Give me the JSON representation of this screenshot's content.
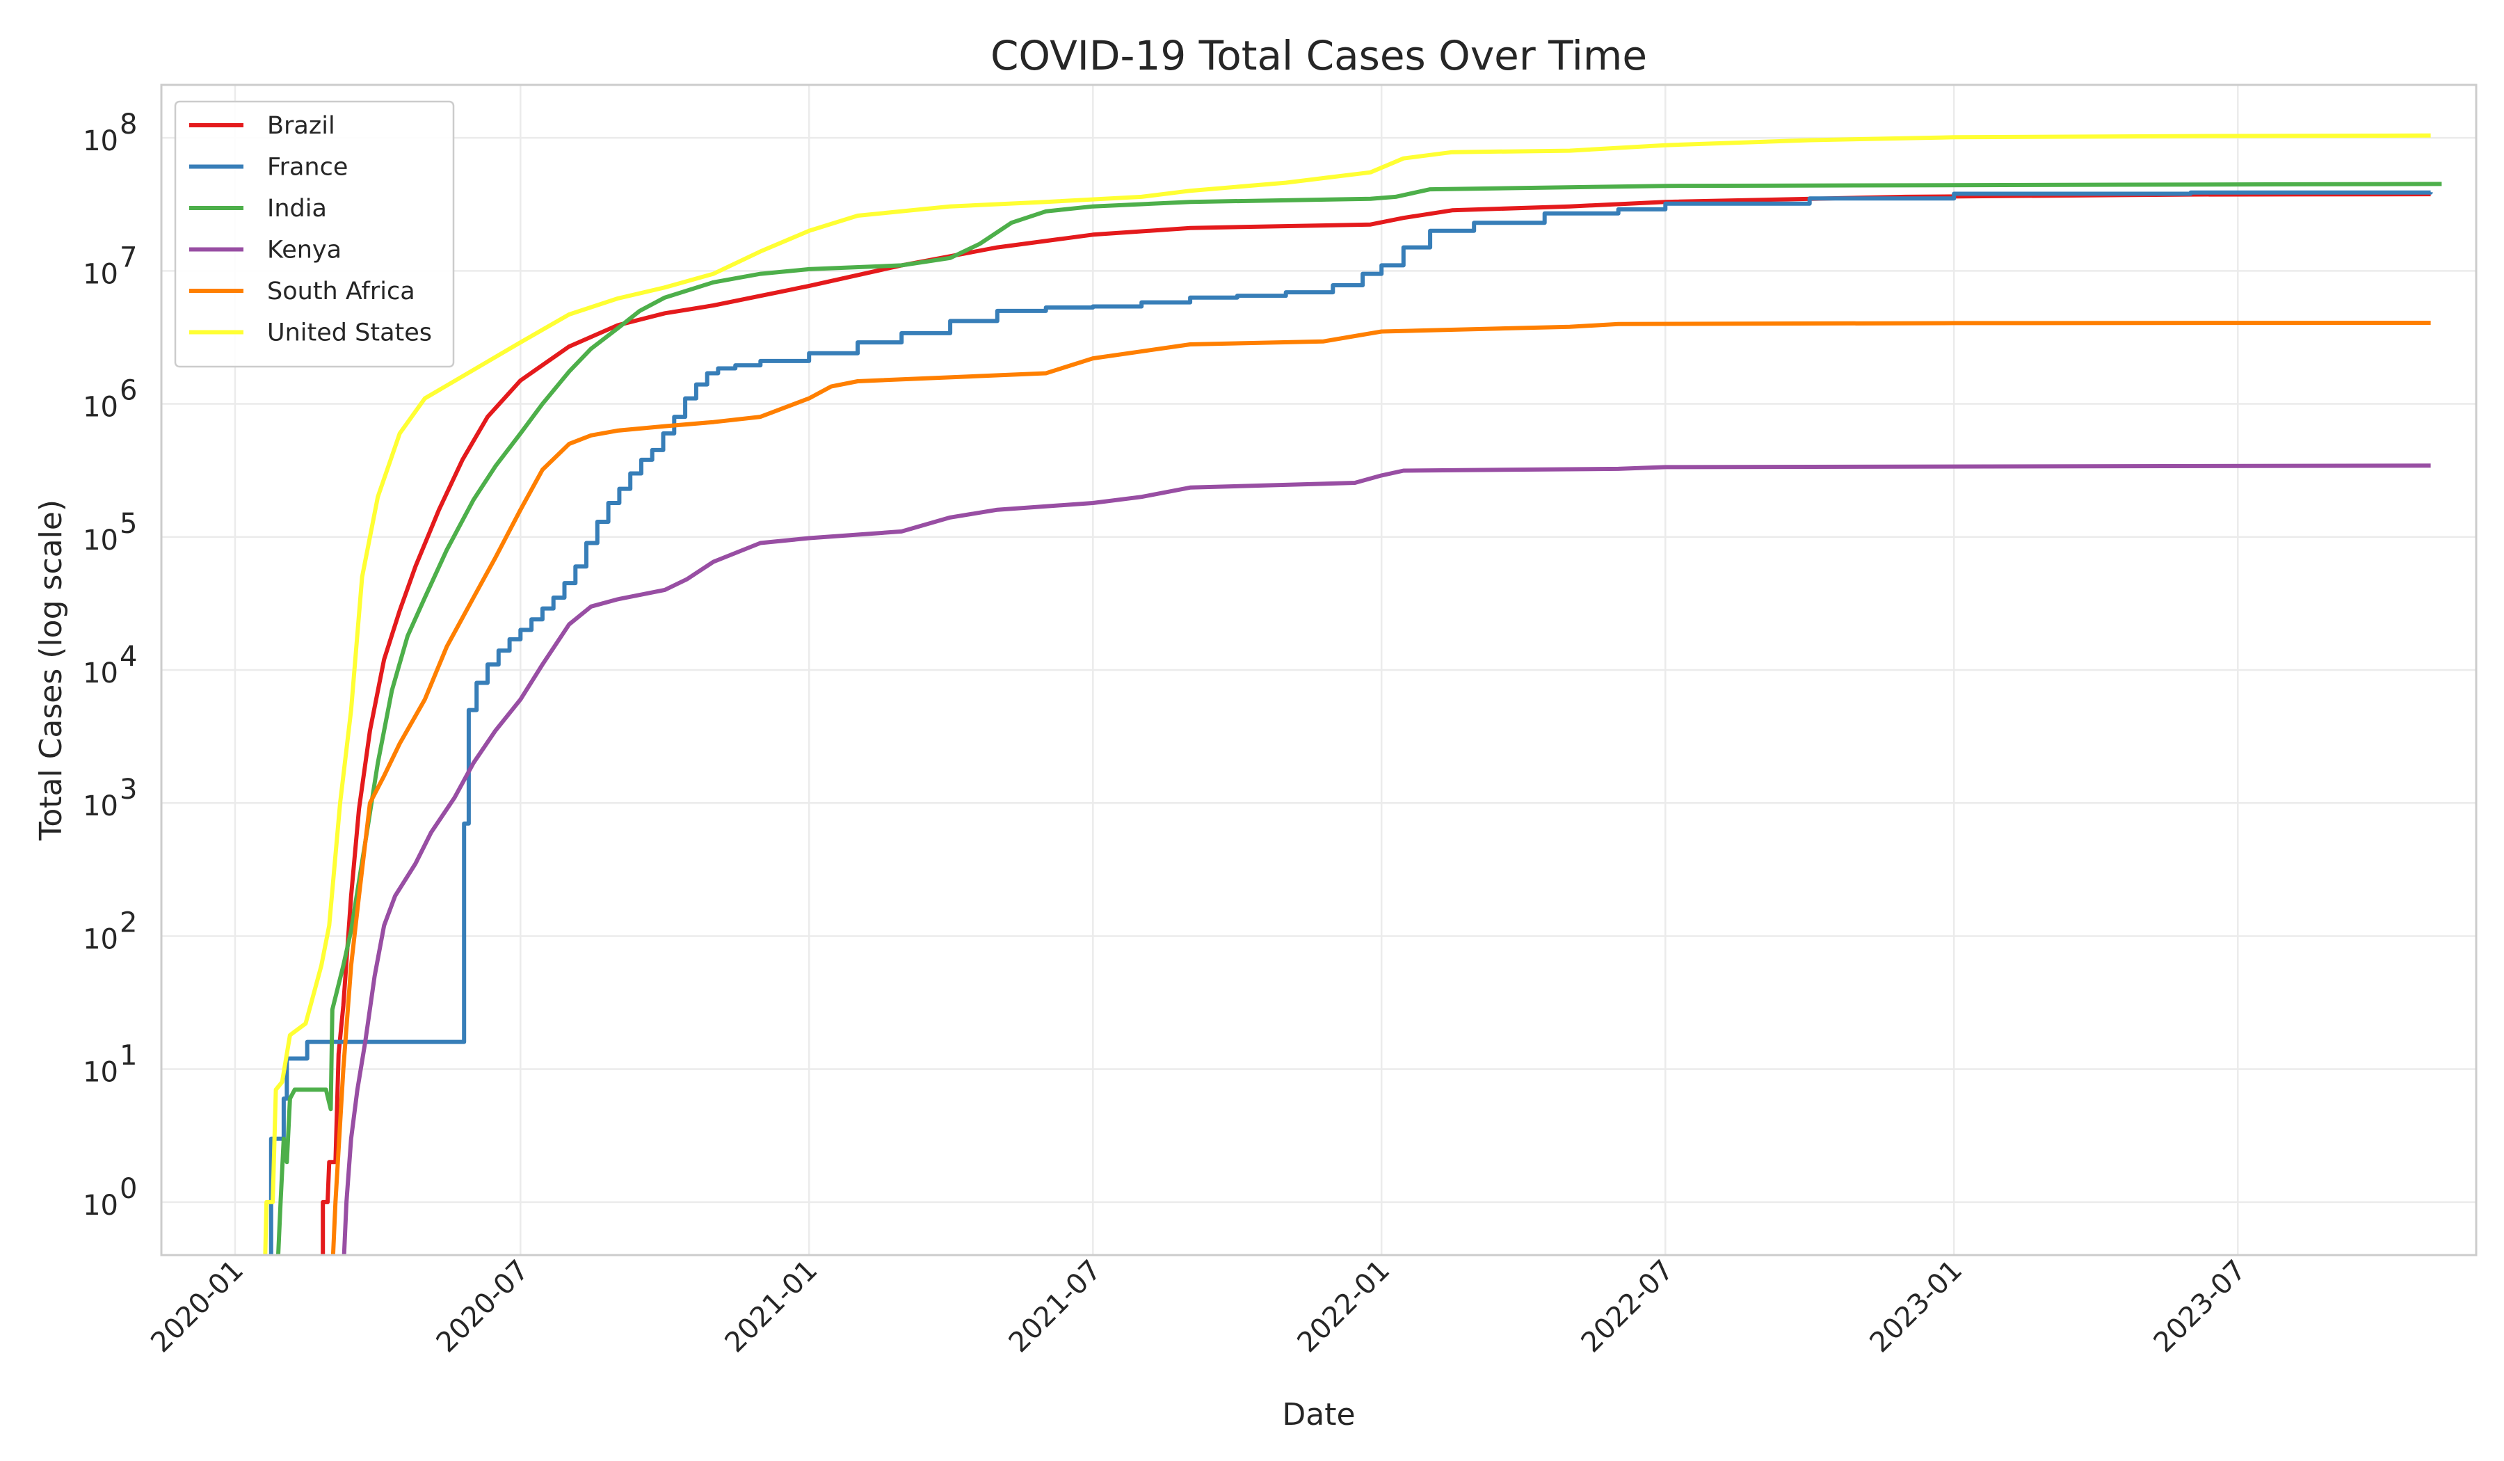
{
  "chart_data": {
    "type": "line",
    "title": "COVID-19 Total Cases Over Time",
    "xlabel": "Date",
    "ylabel": "Total Cases (log scale)",
    "y_scale": "log",
    "ylim": [
      0.4,
      250000000
    ],
    "xlim": [
      "2019-11-15",
      "2023-11-30"
    ],
    "grid": true,
    "legend_position": "top-left",
    "x_ticks": [
      "2020-01",
      "2020-07",
      "2021-01",
      "2021-07",
      "2022-01",
      "2022-07",
      "2023-01",
      "2023-07"
    ],
    "y_ticks": [
      {
        "value": 1,
        "base": "10",
        "exp": "0"
      },
      {
        "value": 10,
        "base": "10",
        "exp": "1"
      },
      {
        "value": 100,
        "base": "10",
        "exp": "2"
      },
      {
        "value": 1000,
        "base": "10",
        "exp": "3"
      },
      {
        "value": 10000,
        "base": "10",
        "exp": "4"
      },
      {
        "value": 100000,
        "base": "10",
        "exp": "5"
      },
      {
        "value": 1000000,
        "base": "10",
        "exp": "6"
      },
      {
        "value": 10000000,
        "base": "10",
        "exp": "7"
      },
      {
        "value": 100000000,
        "base": "10",
        "exp": "8"
      }
    ],
    "series": [
      {
        "name": "Brazil",
        "color": "#e41a1c",
        "step": false,
        "points": [
          [
            "2020-02-26",
            0.3
          ],
          [
            "2020-02-26",
            1
          ],
          [
            "2020-02-29",
            1
          ],
          [
            "2020-03-01",
            2
          ],
          [
            "2020-03-05",
            2
          ],
          [
            "2020-03-07",
            13
          ],
          [
            "2020-03-10",
            30
          ],
          [
            "2020-03-15",
            200
          ],
          [
            "2020-03-20",
            900
          ],
          [
            "2020-03-27",
            3500
          ],
          [
            "2020-04-05",
            12000
          ],
          [
            "2020-04-15",
            28000
          ],
          [
            "2020-04-25",
            60000
          ],
          [
            "2020-05-10",
            160000
          ],
          [
            "2020-05-25",
            380000
          ],
          [
            "2020-06-10",
            800000
          ],
          [
            "2020-07-01",
            1500000
          ],
          [
            "2020-08-01",
            2700000
          ],
          [
            "2020-09-01",
            3900000
          ],
          [
            "2020-10-01",
            4800000
          ],
          [
            "2020-11-01",
            5500000
          ],
          [
            "2021-01-01",
            7700000
          ],
          [
            "2021-03-01",
            11000000
          ],
          [
            "2021-05-01",
            15000000
          ],
          [
            "2021-07-01",
            18700000
          ],
          [
            "2021-09-01",
            21000000
          ],
          [
            "2021-12-25",
            22300000
          ],
          [
            "2022-01-15",
            25000000
          ],
          [
            "2022-02-15",
            28500000
          ],
          [
            "2022-05-01",
            30500000
          ],
          [
            "2022-07-01",
            33000000
          ],
          [
            "2022-12-01",
            36000000
          ],
          [
            "2023-06-01",
            37500000
          ],
          [
            "2023-11-01",
            37700000
          ]
        ]
      },
      {
        "name": "France",
        "color": "#377eb8",
        "step": true,
        "points": [
          [
            "2020-01-24",
            0.3
          ],
          [
            "2020-01-24",
            3
          ],
          [
            "2020-02-01",
            6
          ],
          [
            "2020-02-03",
            12
          ],
          [
            "2020-02-15",
            12
          ],
          [
            "2020-02-16",
            16
          ],
          [
            "2020-05-25",
            16
          ],
          [
            "2020-05-26",
            700
          ],
          [
            "2020-05-29",
            5000
          ],
          [
            "2020-06-03",
            8000
          ],
          [
            "2020-06-10",
            11000
          ],
          [
            "2020-06-17",
            14000
          ],
          [
            "2020-06-24",
            17000
          ],
          [
            "2020-07-01",
            20000
          ],
          [
            "2020-07-08",
            24000
          ],
          [
            "2020-07-15",
            29000
          ],
          [
            "2020-07-22",
            35000
          ],
          [
            "2020-07-29",
            45000
          ],
          [
            "2020-08-05",
            60000
          ],
          [
            "2020-08-12",
            90000
          ],
          [
            "2020-08-19",
            130000
          ],
          [
            "2020-08-26",
            180000
          ],
          [
            "2020-09-02",
            230000
          ],
          [
            "2020-09-09",
            300000
          ],
          [
            "2020-09-16",
            380000
          ],
          [
            "2020-09-23",
            450000
          ],
          [
            "2020-09-30",
            600000
          ],
          [
            "2020-10-07",
            800000
          ],
          [
            "2020-10-14",
            1100000
          ],
          [
            "2020-10-21",
            1400000
          ],
          [
            "2020-10-28",
            1700000
          ],
          [
            "2020-11-04",
            1850000
          ],
          [
            "2020-11-15",
            1950000
          ],
          [
            "2020-12-01",
            2100000
          ],
          [
            "2021-01-01",
            2400000
          ],
          [
            "2021-02-01",
            2900000
          ],
          [
            "2021-03-01",
            3400000
          ],
          [
            "2021-04-01",
            4200000
          ],
          [
            "2021-05-01",
            5000000
          ],
          [
            "2021-06-01",
            5300000
          ],
          [
            "2021-07-01",
            5400000
          ],
          [
            "2021-08-01",
            5800000
          ],
          [
            "2021-09-01",
            6300000
          ],
          [
            "2021-10-01",
            6500000
          ],
          [
            "2021-11-01",
            6900000
          ],
          [
            "2021-12-01",
            7800000
          ],
          [
            "2021-12-20",
            9500000
          ],
          [
            "2022-01-01",
            11000000
          ],
          [
            "2022-01-15",
            15000000
          ],
          [
            "2022-02-01",
            20000000
          ],
          [
            "2022-03-01",
            23000000
          ],
          [
            "2022-04-15",
            27000000
          ],
          [
            "2022-06-01",
            29000000
          ],
          [
            "2022-07-01",
            32000000
          ],
          [
            "2022-10-01",
            35000000
          ],
          [
            "2023-01-01",
            38000000
          ],
          [
            "2023-06-01",
            38800000
          ],
          [
            "2023-11-01",
            39000000
          ]
        ]
      },
      {
        "name": "India",
        "color": "#4daf4a",
        "step": false,
        "points": [
          [
            "2020-01-28",
            0.3
          ],
          [
            "2020-01-30",
            1
          ],
          [
            "2020-02-01",
            3
          ],
          [
            "2020-02-03",
            2
          ],
          [
            "2020-02-05",
            6
          ],
          [
            "2020-02-08",
            7
          ],
          [
            "2020-02-28",
            7
          ],
          [
            "2020-03-02",
            5
          ],
          [
            "2020-03-03",
            28
          ],
          [
            "2020-03-10",
            60
          ],
          [
            "2020-03-15",
            110
          ],
          [
            "2020-03-25",
            600
          ],
          [
            "2020-04-01",
            2000
          ],
          [
            "2020-04-10",
            7000
          ],
          [
            "2020-04-20",
            18000
          ],
          [
            "2020-05-01",
            35000
          ],
          [
            "2020-05-15",
            80000
          ],
          [
            "2020-06-01",
            190000
          ],
          [
            "2020-06-15",
            340000
          ],
          [
            "2020-07-01",
            600000
          ],
          [
            "2020-07-15",
            1000000
          ],
          [
            "2020-08-01",
            1750000
          ],
          [
            "2020-08-15",
            2600000
          ],
          [
            "2020-09-01",
            3700000
          ],
          [
            "2020-09-15",
            5000000
          ],
          [
            "2020-10-01",
            6300000
          ],
          [
            "2020-11-01",
            8200000
          ],
          [
            "2020-12-01",
            9500000
          ],
          [
            "2021-01-01",
            10300000
          ],
          [
            "2021-03-01",
            11000000
          ],
          [
            "2021-04-01",
            12500000
          ],
          [
            "2021-04-20",
            16000000
          ],
          [
            "2021-05-10",
            23000000
          ],
          [
            "2021-06-01",
            28000000
          ],
          [
            "2021-07-01",
            30500000
          ],
          [
            "2021-09-01",
            33000000
          ],
          [
            "2021-12-25",
            34800000
          ],
          [
            "2022-01-10",
            36000000
          ],
          [
            "2022-02-01",
            41000000
          ],
          [
            "2022-07-01",
            43500000
          ],
          [
            "2023-11-08",
            45000000
          ]
        ]
      },
      {
        "name": "Kenya",
        "color": "#984ea3",
        "step": false,
        "points": [
          [
            "2020-03-10",
            0.3
          ],
          [
            "2020-03-12",
            1
          ],
          [
            "2020-03-15",
            3
          ],
          [
            "2020-03-19",
            7
          ],
          [
            "2020-03-24",
            16
          ],
          [
            "2020-03-30",
            50
          ],
          [
            "2020-04-05",
            120
          ],
          [
            "2020-04-12",
            200
          ],
          [
            "2020-04-25",
            350
          ],
          [
            "2020-05-05",
            600
          ],
          [
            "2020-05-20",
            1100
          ],
          [
            "2020-06-01",
            2000
          ],
          [
            "2020-06-15",
            3500
          ],
          [
            "2020-07-01",
            6000
          ],
          [
            "2020-07-15",
            11000
          ],
          [
            "2020-08-01",
            22000
          ],
          [
            "2020-08-15",
            30000
          ],
          [
            "2020-09-01",
            34000
          ],
          [
            "2020-10-01",
            40000
          ],
          [
            "2020-10-15",
            48000
          ],
          [
            "2020-11-01",
            65000
          ],
          [
            "2020-12-01",
            90000
          ],
          [
            "2021-01-01",
            98000
          ],
          [
            "2021-03-01",
            110000
          ],
          [
            "2021-04-01",
            140000
          ],
          [
            "2021-05-01",
            160000
          ],
          [
            "2021-07-01",
            180000
          ],
          [
            "2021-08-01",
            200000
          ],
          [
            "2021-09-01",
            235000
          ],
          [
            "2021-12-15",
            255000
          ],
          [
            "2022-01-01",
            290000
          ],
          [
            "2022-01-15",
            315000
          ],
          [
            "2022-06-01",
            325000
          ],
          [
            "2022-07-01",
            335000
          ],
          [
            "2023-11-01",
            344000
          ]
        ]
      },
      {
        "name": "South Africa",
        "color": "#ff7f00",
        "step": false,
        "points": [
          [
            "2020-03-03",
            0.3
          ],
          [
            "2020-03-05",
            1
          ],
          [
            "2020-03-10",
            10
          ],
          [
            "2020-03-15",
            60
          ],
          [
            "2020-03-20",
            200
          ],
          [
            "2020-03-27",
            1000
          ],
          [
            "2020-04-05",
            1600
          ],
          [
            "2020-04-15",
            2800
          ],
          [
            "2020-05-01",
            6000
          ],
          [
            "2020-05-15",
            15000
          ],
          [
            "2020-06-01",
            35000
          ],
          [
            "2020-06-15",
            70000
          ],
          [
            "2020-07-01",
            160000
          ],
          [
            "2020-07-15",
            320000
          ],
          [
            "2020-08-01",
            500000
          ],
          [
            "2020-08-15",
            580000
          ],
          [
            "2020-09-01",
            630000
          ],
          [
            "2020-10-01",
            680000
          ],
          [
            "2020-11-01",
            730000
          ],
          [
            "2020-12-01",
            800000
          ],
          [
            "2021-01-01",
            1100000
          ],
          [
            "2021-01-15",
            1350000
          ],
          [
            "2021-02-01",
            1480000
          ],
          [
            "2021-06-01",
            1700000
          ],
          [
            "2021-07-01",
            2200000
          ],
          [
            "2021-09-01",
            2800000
          ],
          [
            "2021-11-25",
            2950000
          ],
          [
            "2022-01-01",
            3500000
          ],
          [
            "2022-05-01",
            3800000
          ],
          [
            "2022-06-01",
            3980000
          ],
          [
            "2023-01-01",
            4050000
          ],
          [
            "2023-11-01",
            4070000
          ]
        ]
      },
      {
        "name": "United States",
        "color": "#ffff33",
        "step": false,
        "points": [
          [
            "2020-01-20",
            0.3
          ],
          [
            "2020-01-21",
            1
          ],
          [
            "2020-01-25",
            1
          ],
          [
            "2020-01-27",
            7
          ],
          [
            "2020-01-31",
            8
          ],
          [
            "2020-02-05",
            18
          ],
          [
            "2020-02-15",
            22
          ],
          [
            "2020-02-25",
            60
          ],
          [
            "2020-03-01",
            120
          ],
          [
            "2020-03-08",
            1000
          ],
          [
            "2020-03-15",
            5000
          ],
          [
            "2020-03-22",
            50000
          ],
          [
            "2020-04-01",
            200000
          ],
          [
            "2020-04-15",
            600000
          ],
          [
            "2020-05-01",
            1100000
          ],
          [
            "2020-06-01",
            1800000
          ],
          [
            "2020-07-01",
            2900000
          ],
          [
            "2020-08-01",
            4700000
          ],
          [
            "2020-09-01",
            6200000
          ],
          [
            "2020-10-01",
            7500000
          ],
          [
            "2020-11-01",
            9500000
          ],
          [
            "2020-12-01",
            14000000
          ],
          [
            "2021-01-01",
            20000000
          ],
          [
            "2021-02-01",
            26000000
          ],
          [
            "2021-04-01",
            30500000
          ],
          [
            "2021-06-01",
            33000000
          ],
          [
            "2021-08-01",
            36000000
          ],
          [
            "2021-09-01",
            40000000
          ],
          [
            "2021-11-01",
            46000000
          ],
          [
            "2021-12-25",
            55000000
          ],
          [
            "2022-01-15",
            70000000
          ],
          [
            "2022-02-15",
            78000000
          ],
          [
            "2022-05-01",
            80000000
          ],
          [
            "2022-07-01",
            88000000
          ],
          [
            "2022-10-01",
            96000000
          ],
          [
            "2023-01-01",
            101000000
          ],
          [
            "2023-06-01",
            103000000
          ],
          [
            "2023-11-01",
            104000000
          ]
        ]
      }
    ]
  }
}
